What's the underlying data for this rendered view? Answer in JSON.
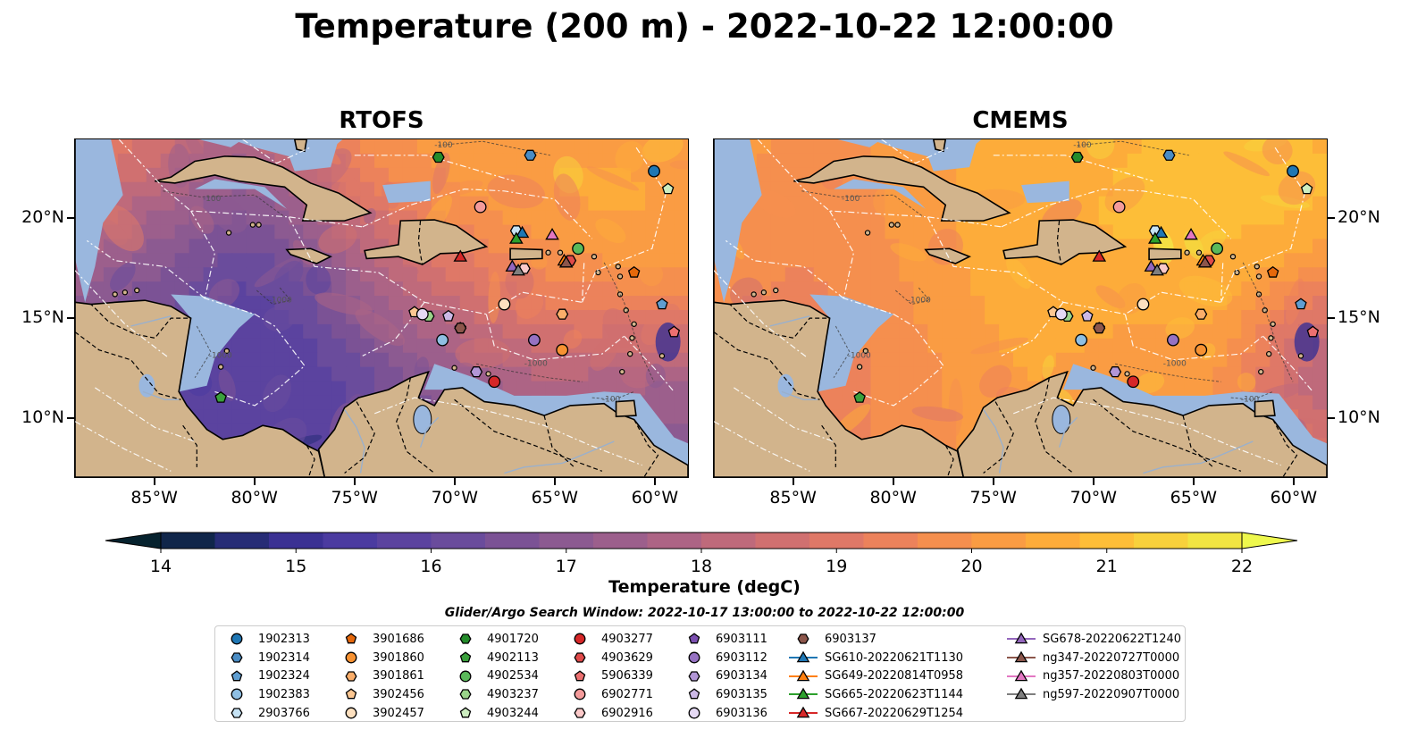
{
  "title": "Temperature (200 m) - 2022-10-22 12:00:00",
  "panels": [
    {
      "id": "rtofs",
      "title": "RTOFS"
    },
    {
      "id": "cmems",
      "title": "CMEMS"
    }
  ],
  "axes": {
    "lon_ticks": [
      "85°W",
      "80°W",
      "75°W",
      "70°W",
      "65°W",
      "60°W"
    ],
    "lat_ticks": [
      "20°N",
      "15°N",
      "10°N"
    ],
    "lon_range": [
      -89,
      -58.3
    ],
    "lat_range": [
      7.0,
      24.0
    ]
  },
  "isobath_labels": [
    "-100",
    "-1000"
  ],
  "colorbar": {
    "label": "Temperature (degC)",
    "min": 14,
    "max": 22,
    "ticks": [
      "14",
      "15",
      "16",
      "17",
      "18",
      "19",
      "20",
      "21",
      "22"
    ],
    "colors": [
      "#06222e",
      "#10264a",
      "#272c76",
      "#3b3193",
      "#4b3ba0",
      "#5b439f",
      "#6a4c9c",
      "#7b5295",
      "#8c5a91",
      "#9c5f8c",
      "#ad6485",
      "#bf6a7b",
      "#d07070",
      "#df7867",
      "#ec825b",
      "#f58f4e",
      "#fa9c43",
      "#fdac3a",
      "#fdbe38",
      "#f8d13c",
      "#f1e542",
      "#eef84d"
    ],
    "extend": "both"
  },
  "legend_title": "Glider/Argo Search Window: 2022-10-17 13:00:00 to 2022-10-22 12:00:00",
  "legend_columns": [
    [
      {
        "label": "1902313",
        "marker": "circle",
        "color": "#1f77b4"
      },
      {
        "label": "1902314",
        "marker": "hexagon",
        "color": "#4a8cc4"
      },
      {
        "label": "1902324",
        "marker": "pentagon",
        "color": "#5f9ed1"
      },
      {
        "label": "1902383",
        "marker": "circle",
        "color": "#8fbfe3"
      },
      {
        "label": "2903766",
        "marker": "hexagon",
        "color": "#c6e3f5"
      }
    ],
    [
      {
        "label": "3901686",
        "marker": "pentagon",
        "color": "#e6680b"
      },
      {
        "label": "3901860",
        "marker": "circle",
        "color": "#f79232"
      },
      {
        "label": "3901861",
        "marker": "hexagon",
        "color": "#fbae6a"
      },
      {
        "label": "3902456",
        "marker": "pentagon",
        "color": "#fcc792"
      },
      {
        "label": "3902457",
        "marker": "circle",
        "color": "#fde0bf"
      }
    ],
    [
      {
        "label": "4901720",
        "marker": "hexagon",
        "color": "#248c2b"
      },
      {
        "label": "4902113",
        "marker": "pentagon",
        "color": "#3aa03c"
      },
      {
        "label": "4902534",
        "marker": "circle",
        "color": "#5ab95a"
      },
      {
        "label": "4903237",
        "marker": "hexagon",
        "color": "#9ad48a"
      },
      {
        "label": "4903244",
        "marker": "pentagon",
        "color": "#cdedc0"
      }
    ],
    [
      {
        "label": "4903277",
        "marker": "circle",
        "color": "#d62728"
      },
      {
        "label": "4903629",
        "marker": "hexagon",
        "color": "#e04a4a"
      },
      {
        "label": "5906339",
        "marker": "pentagon",
        "color": "#ec7070"
      },
      {
        "label": "6902771",
        "marker": "circle",
        "color": "#f49b9b"
      },
      {
        "label": "6902916",
        "marker": "hexagon",
        "color": "#fbc9c9"
      }
    ],
    [
      {
        "label": "6903111",
        "marker": "pentagon",
        "color": "#7b4fb0"
      },
      {
        "label": "6903112",
        "marker": "circle",
        "color": "#9672c2"
      },
      {
        "label": "6903134",
        "marker": "hexagon",
        "color": "#b296d6"
      },
      {
        "label": "6903135",
        "marker": "pentagon",
        "color": "#ccb8e6"
      },
      {
        "label": "6903136",
        "marker": "circle",
        "color": "#e5d9f4"
      }
    ],
    [
      {
        "label": "6903137",
        "marker": "hexagon",
        "color": "#8c564b"
      },
      {
        "label": "SG610-20220621T1130",
        "marker": "triangle",
        "color": "#1f77b4",
        "line": true
      },
      {
        "label": "SG649-20220814T0958",
        "marker": "triangle",
        "color": "#ff7f0e",
        "line": true
      },
      {
        "label": "SG665-20220623T1144",
        "marker": "triangle",
        "color": "#2ca02c",
        "line": true
      },
      {
        "label": "SG667-20220629T1254",
        "marker": "triangle",
        "color": "#d62728",
        "line": true
      }
    ],
    [
      {
        "label": "SG678-20220622T1240",
        "marker": "triangle",
        "color": "#9467bd",
        "line": true
      },
      {
        "label": "ng347-20220727T0000",
        "marker": "triangle",
        "color": "#8c564b",
        "line": true
      },
      {
        "label": "ng357-20220803T0000",
        "marker": "triangle",
        "color": "#e377c2",
        "line": true
      },
      {
        "label": "ng597-20220907T0000",
        "marker": "triangle",
        "color": "#7f7f7f",
        "line": true
      }
    ]
  ],
  "platforms": [
    {
      "label": "1902313",
      "lon": -60.0,
      "lat": 22.4
    },
    {
      "label": "1902314",
      "lon": -66.2,
      "lat": 23.2
    },
    {
      "label": "1902324",
      "lon": -59.6,
      "lat": 15.7
    },
    {
      "label": "1902383",
      "lon": -70.6,
      "lat": 13.9
    },
    {
      "label": "2903766",
      "lon": -66.9,
      "lat": 19.4
    },
    {
      "label": "3901686",
      "lon": -61.0,
      "lat": 17.3
    },
    {
      "label": "3901860",
      "lon": -64.6,
      "lat": 13.4
    },
    {
      "label": "3901861",
      "lon": -64.6,
      "lat": 15.2
    },
    {
      "label": "3902456",
      "lon": -72.0,
      "lat": 15.3
    },
    {
      "label": "3902457",
      "lon": -67.5,
      "lat": 15.7
    },
    {
      "label": "4901720",
      "lon": -70.8,
      "lat": 23.1
    },
    {
      "label": "4902113",
      "lon": -81.7,
      "lat": 11.0
    },
    {
      "label": "4902534",
      "lon": -63.8,
      "lat": 18.5
    },
    {
      "label": "4903237",
      "lon": -71.3,
      "lat": 15.1
    },
    {
      "label": "4903244",
      "lon": -59.3,
      "lat": 21.5
    },
    {
      "label": "4903277",
      "lon": -68.0,
      "lat": 11.8
    },
    {
      "label": "4903629",
      "lon": -64.2,
      "lat": 17.9
    },
    {
      "label": "5906339",
      "lon": -59.0,
      "lat": 14.3
    },
    {
      "label": "6902771",
      "lon": -68.7,
      "lat": 20.6
    },
    {
      "label": "6902916",
      "lon": -66.5,
      "lat": 17.5
    },
    {
      "label": "6903111",
      "lon": -69.7,
      "lat": 14.5
    },
    {
      "label": "6903112",
      "lon": -66.0,
      "lat": 13.9
    },
    {
      "label": "6903134",
      "lon": -68.9,
      "lat": 12.3
    },
    {
      "label": "6903135",
      "lon": -70.3,
      "lat": 15.1
    },
    {
      "label": "6903136",
      "lon": -71.6,
      "lat": 15.2
    },
    {
      "label": "6903137",
      "lon": -69.7,
      "lat": 14.5
    },
    {
      "label": "SG610-20220621T1130",
      "lon": -66.6,
      "lat": 19.3
    },
    {
      "label": "SG649-20220814T0958",
      "lon": -64.5,
      "lat": 17.9
    },
    {
      "label": "SG665-20220623T1144",
      "lon": -66.9,
      "lat": 19.0
    },
    {
      "label": "SG667-20220629T1254",
      "lon": -69.7,
      "lat": 18.1
    },
    {
      "label": "SG678-20220622T1240",
      "lon": -67.1,
      "lat": 17.6
    },
    {
      "label": "ng347-20220727T0000",
      "lon": -64.4,
      "lat": 17.8
    },
    {
      "label": "ng357-20220803T0000",
      "lon": -65.1,
      "lat": 19.2
    },
    {
      "label": "ng597-20220907T0000",
      "lon": -66.8,
      "lat": 17.4
    }
  ],
  "colors": {
    "land": "#d2b48c",
    "shelf": "#9ab7de",
    "coast": "#000000",
    "eez": "#ffffff",
    "border": "#000000"
  }
}
